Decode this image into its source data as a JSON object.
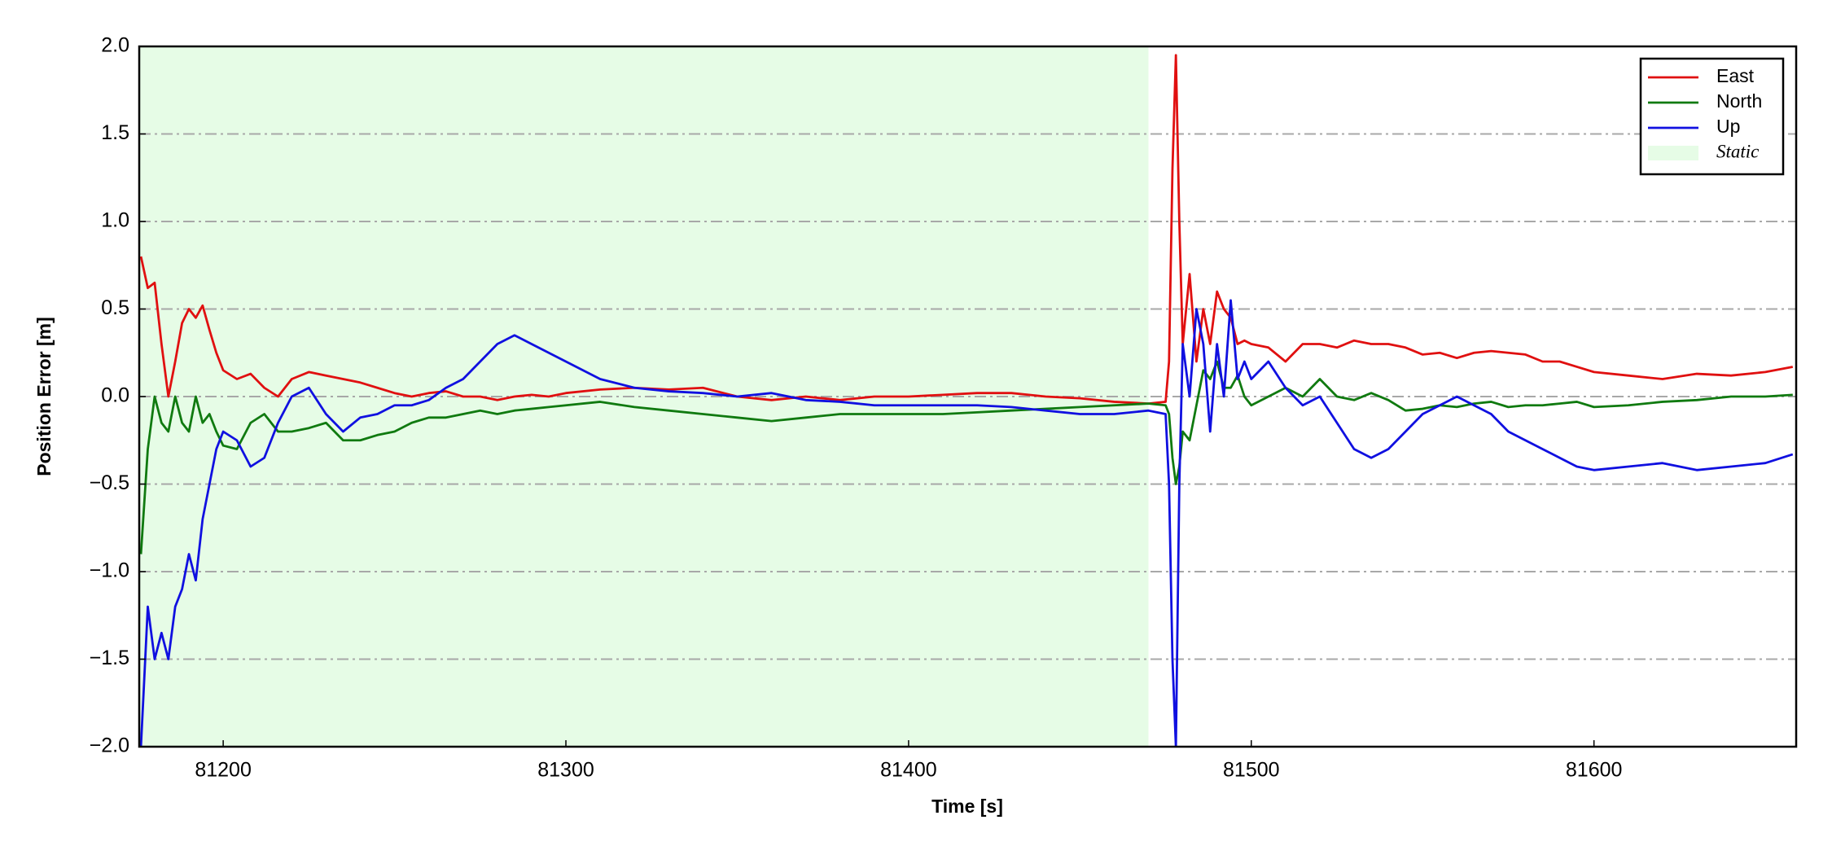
{
  "chart_data": {
    "type": "line",
    "xlabel": "Time [s]",
    "ylabel": "Position Error [m]",
    "x": [
      81176,
      81178,
      81180,
      81182,
      81184,
      81186,
      81188,
      81190,
      81192,
      81194,
      81196,
      81198,
      81200,
      81204,
      81208,
      81212,
      81216,
      81220,
      81225,
      81230,
      81235,
      81240,
      81245,
      81250,
      81255,
      81260,
      81265,
      81270,
      81275,
      81280,
      81285,
      81290,
      81295,
      81300,
      81310,
      81320,
      81330,
      81340,
      81350,
      81360,
      81370,
      81380,
      81390,
      81400,
      81410,
      81420,
      81430,
      81440,
      81450,
      81460,
      81470,
      81475,
      81476,
      81477,
      81478,
      81479,
      81480,
      81482,
      81484,
      81486,
      81488,
      81490,
      81492,
      81494,
      81496,
      81498,
      81500,
      81505,
      81510,
      81515,
      81520,
      81525,
      81530,
      81535,
      81540,
      81545,
      81550,
      81555,
      81560,
      81565,
      81570,
      81575,
      81580,
      81585,
      81590,
      81595,
      81600,
      81610,
      81620,
      81630,
      81640,
      81650,
      81658
    ],
    "series": [
      {
        "name": "East",
        "color": "#e01010",
        "values": [
          0.8,
          0.62,
          0.65,
          0.3,
          0.0,
          0.2,
          0.42,
          0.5,
          0.45,
          0.52,
          0.38,
          0.25,
          0.15,
          0.1,
          0.13,
          0.05,
          0.0,
          0.1,
          0.14,
          0.12,
          0.1,
          0.08,
          0.05,
          0.02,
          0.0,
          0.02,
          0.03,
          0.0,
          0.0,
          -0.02,
          0.0,
          0.01,
          0.0,
          0.02,
          0.04,
          0.05,
          0.04,
          0.05,
          0.0,
          -0.02,
          0.0,
          -0.02,
          0.0,
          0.0,
          0.01,
          0.02,
          0.02,
          0.0,
          -0.01,
          -0.03,
          -0.04,
          -0.03,
          0.2,
          1.3,
          1.95,
          1.0,
          0.3,
          0.7,
          0.2,
          0.5,
          0.3,
          0.6,
          0.5,
          0.45,
          0.3,
          0.32,
          0.3,
          0.28,
          0.2,
          0.3,
          0.3,
          0.28,
          0.32,
          0.3,
          0.3,
          0.28,
          0.24,
          0.25,
          0.22,
          0.25,
          0.26,
          0.25,
          0.24,
          0.2,
          0.2,
          0.17,
          0.14,
          0.12,
          0.1,
          0.13,
          0.12,
          0.14,
          0.17
        ]
      },
      {
        "name": "North",
        "color": "#107a10",
        "values": [
          -0.9,
          -0.3,
          0.0,
          -0.15,
          -0.2,
          0.0,
          -0.15,
          -0.2,
          0.0,
          -0.15,
          -0.1,
          -0.2,
          -0.28,
          -0.3,
          -0.15,
          -0.1,
          -0.2,
          -0.2,
          -0.18,
          -0.15,
          -0.25,
          -0.25,
          -0.22,
          -0.2,
          -0.15,
          -0.12,
          -0.12,
          -0.1,
          -0.08,
          -0.1,
          -0.08,
          -0.07,
          -0.06,
          -0.05,
          -0.03,
          -0.06,
          -0.08,
          -0.1,
          -0.12,
          -0.14,
          -0.12,
          -0.1,
          -0.1,
          -0.1,
          -0.1,
          -0.09,
          -0.08,
          -0.07,
          -0.06,
          -0.05,
          -0.04,
          -0.05,
          -0.1,
          -0.35,
          -0.5,
          -0.4,
          -0.2,
          -0.25,
          -0.05,
          0.15,
          0.1,
          0.2,
          0.05,
          0.05,
          0.12,
          0.0,
          -0.05,
          0.0,
          0.05,
          0.0,
          0.1,
          0.0,
          -0.02,
          0.02,
          -0.02,
          -0.08,
          -0.07,
          -0.05,
          -0.06,
          -0.04,
          -0.03,
          -0.06,
          -0.05,
          -0.05,
          -0.04,
          -0.03,
          -0.06,
          -0.05,
          -0.03,
          -0.02,
          0.0,
          0.0,
          0.01
        ]
      },
      {
        "name": "Up",
        "color": "#1010e0",
        "values": [
          -2.0,
          -1.2,
          -1.5,
          -1.35,
          -1.5,
          -1.2,
          -1.1,
          -0.9,
          -1.05,
          -0.7,
          -0.5,
          -0.3,
          -0.2,
          -0.25,
          -0.4,
          -0.35,
          -0.15,
          0.0,
          0.05,
          -0.1,
          -0.2,
          -0.12,
          -0.1,
          -0.05,
          -0.05,
          -0.02,
          0.05,
          0.1,
          0.2,
          0.3,
          0.35,
          0.3,
          0.25,
          0.2,
          0.1,
          0.05,
          0.03,
          0.02,
          0.0,
          0.02,
          -0.02,
          -0.03,
          -0.05,
          -0.05,
          -0.05,
          -0.05,
          -0.06,
          -0.08,
          -0.1,
          -0.1,
          -0.08,
          -0.1,
          -0.5,
          -1.5,
          -2.0,
          -0.5,
          0.3,
          0.0,
          0.5,
          0.3,
          -0.2,
          0.3,
          0.0,
          0.55,
          0.1,
          0.2,
          0.1,
          0.2,
          0.05,
          -0.05,
          0.0,
          -0.15,
          -0.3,
          -0.35,
          -0.3,
          -0.2,
          -0.1,
          -0.05,
          0.0,
          -0.05,
          -0.1,
          -0.2,
          -0.25,
          -0.3,
          -0.35,
          -0.4,
          -0.42,
          -0.4,
          -0.38,
          -0.42,
          -0.4,
          -0.38,
          -0.33
        ]
      }
    ],
    "shaded_region": {
      "name": "Static",
      "range": [
        81175.5,
        81470
      ],
      "color": "#e6fce6"
    },
    "xlim": [
      81175.5,
      81659
    ],
    "xticks": [
      81200,
      81300,
      81400,
      81500,
      81600
    ],
    "ylim": [
      -2.0,
      2.0
    ],
    "yticks": [
      {
        "value": -2.0,
        "label": "−2.0"
      },
      {
        "value": -1.5,
        "label": "−1.5"
      },
      {
        "value": -1.0,
        "label": "−1.0"
      },
      {
        "value": -0.5,
        "label": "−0.5"
      },
      {
        "value": 0.0,
        "label": "0.0"
      },
      {
        "value": 0.5,
        "label": "0.5"
      },
      {
        "value": 1.0,
        "label": "1.0"
      },
      {
        "value": 1.5,
        "label": "1.5"
      },
      {
        "value": 2.0,
        "label": "2.0"
      }
    ],
    "grid": true,
    "legend_position": "upper right"
  }
}
